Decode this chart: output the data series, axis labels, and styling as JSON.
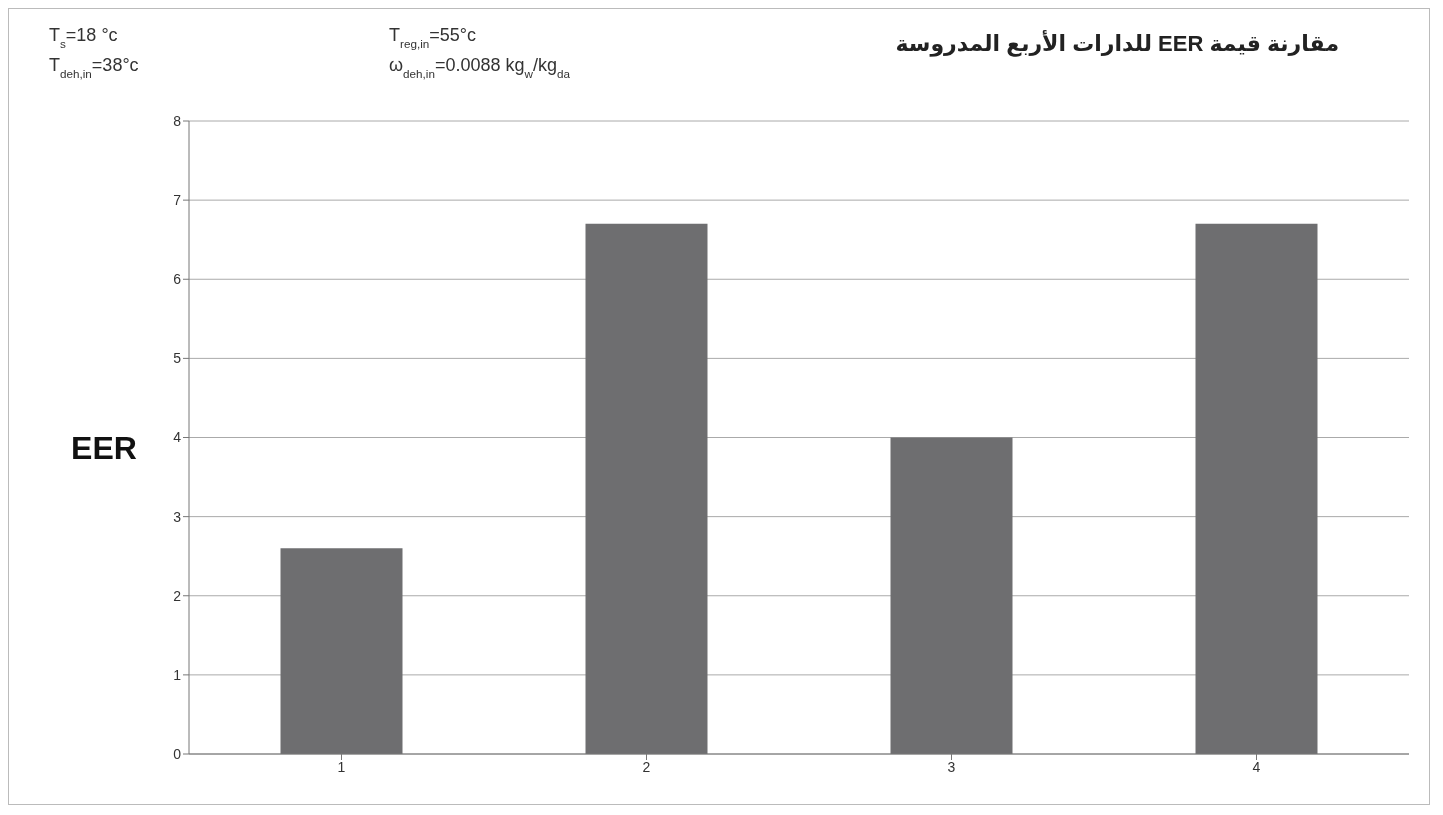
{
  "chart_data": {
    "type": "bar",
    "title": "مقارنة قيمة EER للدارات الأربع المدروسة",
    "ylabel": "EER",
    "annotations": [
      "T$_{s}$=18 °c",
      "T$_{deh,in}$=38°c",
      "T$_{reg,in}$=55°c",
      "ω$_{deh,in}$=0.0088 kg$_{w}$/kg$_{da}$"
    ],
    "categories": [
      "1",
      "2",
      "3",
      "4"
    ],
    "values": [
      2.6,
      6.7,
      4.0,
      6.7
    ],
    "color": "#6e6e70",
    "ylim": [
      0,
      8
    ],
    "yticks": [
      0,
      1,
      2,
      3,
      4,
      5,
      6,
      7,
      8
    ],
    "grid": "y"
  }
}
